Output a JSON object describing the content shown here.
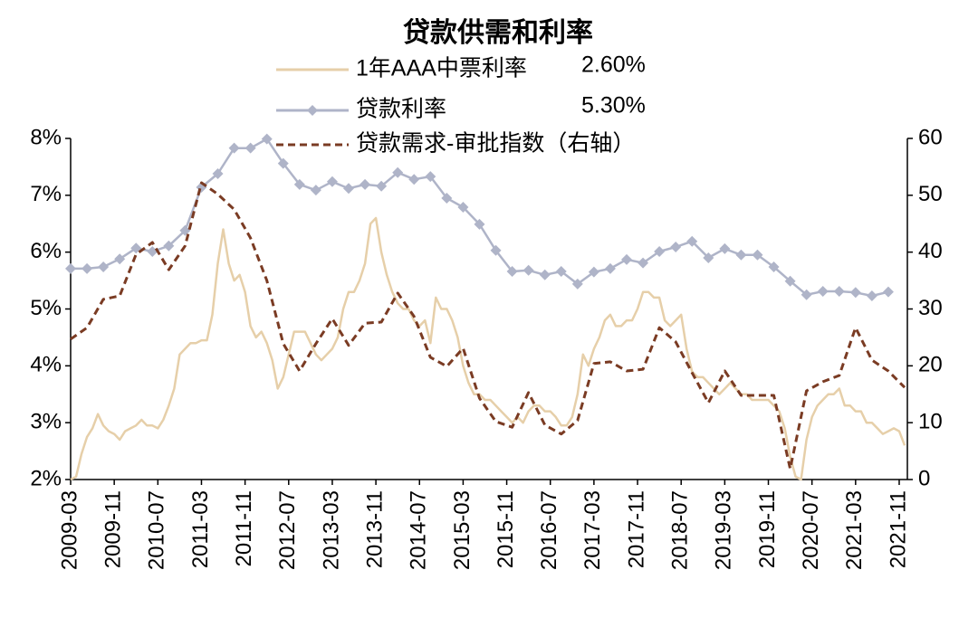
{
  "chart_data": {
    "type": "line",
    "title": "贷款供需和利率",
    "xlim": [
      "2009-03",
      "2021-12"
    ],
    "xticks": [
      "2009-03",
      "2009-11",
      "2010-07",
      "2011-03",
      "2011-11",
      "2012-07",
      "2013-03",
      "2013-11",
      "2014-07",
      "2015-03",
      "2015-11",
      "2016-07",
      "2017-03",
      "2017-11",
      "2018-07",
      "2019-03",
      "2019-11",
      "2020-07",
      "2021-03",
      "2021-11"
    ],
    "ylim": [
      2,
      8
    ],
    "yticks": [
      {
        "value": 2,
        "label": "2%"
      },
      {
        "value": 3,
        "label": "3%"
      },
      {
        "value": 4,
        "label": "4%"
      },
      {
        "value": 5,
        "label": "5%"
      },
      {
        "value": 6,
        "label": "6%"
      },
      {
        "value": 7,
        "label": "7%"
      },
      {
        "value": 8,
        "label": "8%"
      }
    ],
    "y2lim": [
      0,
      60
    ],
    "y2ticks": [
      0,
      10,
      20,
      30,
      40,
      50,
      60
    ],
    "grid": false,
    "series": [
      {
        "name": "1年AAA中票利率",
        "note": "2.60%",
        "color": "#e6cfa9",
        "axis": "y",
        "x": [
          "2009-03",
          "2009-04",
          "2009-05",
          "2009-06",
          "2009-07",
          "2009-08",
          "2009-09",
          "2009-10",
          "2009-11",
          "2009-12",
          "2010-01",
          "2010-02",
          "2010-03",
          "2010-04",
          "2010-05",
          "2010-06",
          "2010-07",
          "2010-08",
          "2010-09",
          "2010-10",
          "2010-11",
          "2010-12",
          "2011-01",
          "2011-02",
          "2011-03",
          "2011-04",
          "2011-05",
          "2011-06",
          "2011-07",
          "2011-08",
          "2011-09",
          "2011-10",
          "2011-11",
          "2011-12",
          "2012-01",
          "2012-02",
          "2012-03",
          "2012-04",
          "2012-05",
          "2012-06",
          "2012-07",
          "2012-08",
          "2012-09",
          "2012-10",
          "2012-11",
          "2012-12",
          "2013-01",
          "2013-02",
          "2013-03",
          "2013-04",
          "2013-05",
          "2013-06",
          "2013-07",
          "2013-08",
          "2013-09",
          "2013-10",
          "2013-11",
          "2013-12",
          "2014-01",
          "2014-02",
          "2014-03",
          "2014-04",
          "2014-05",
          "2014-06",
          "2014-07",
          "2014-08",
          "2014-09",
          "2014-10",
          "2014-11",
          "2014-12",
          "2015-01",
          "2015-02",
          "2015-03",
          "2015-04",
          "2015-05",
          "2015-06",
          "2015-07",
          "2015-08",
          "2015-09",
          "2015-10",
          "2015-11",
          "2015-12",
          "2016-01",
          "2016-02",
          "2016-03",
          "2016-04",
          "2016-05",
          "2016-06",
          "2016-07",
          "2016-08",
          "2016-09",
          "2016-10",
          "2016-11",
          "2016-12",
          "2017-01",
          "2017-02",
          "2017-03",
          "2017-04",
          "2017-05",
          "2017-06",
          "2017-07",
          "2017-08",
          "2017-09",
          "2017-10",
          "2017-11",
          "2017-12",
          "2018-01",
          "2018-02",
          "2018-03",
          "2018-04",
          "2018-05",
          "2018-06",
          "2018-07",
          "2018-08",
          "2018-09",
          "2018-10",
          "2018-11",
          "2018-12",
          "2019-01",
          "2019-02",
          "2019-03",
          "2019-04",
          "2019-05",
          "2019-06",
          "2019-07",
          "2019-08",
          "2019-09",
          "2019-10",
          "2019-11",
          "2019-12",
          "2020-01",
          "2020-02",
          "2020-03",
          "2020-04",
          "2020-05",
          "2020-06",
          "2020-07",
          "2020-08",
          "2020-09",
          "2020-10",
          "2020-11",
          "2020-12",
          "2021-01",
          "2021-02",
          "2021-03",
          "2021-04",
          "2021-05",
          "2021-06",
          "2021-07",
          "2021-08",
          "2021-09",
          "2021-10",
          "2021-11",
          "2021-12"
        ],
        "values": [
          2.0,
          2.05,
          2.45,
          2.75,
          2.9,
          3.15,
          2.95,
          2.85,
          2.8,
          2.7,
          2.85,
          2.9,
          2.95,
          3.05,
          2.95,
          2.95,
          2.9,
          3.05,
          3.3,
          3.6,
          4.2,
          4.3,
          4.4,
          4.4,
          4.45,
          4.45,
          4.9,
          5.8,
          6.4,
          5.8,
          5.5,
          5.6,
          5.3,
          4.7,
          4.5,
          4.6,
          4.4,
          4.1,
          3.6,
          3.8,
          4.2,
          4.6,
          4.6,
          4.6,
          4.4,
          4.2,
          4.1,
          4.2,
          4.3,
          4.5,
          5.0,
          5.3,
          5.3,
          5.5,
          5.8,
          6.5,
          6.6,
          6.0,
          5.6,
          5.3,
          5.1,
          5.0,
          5.0,
          4.8,
          4.7,
          4.8,
          4.4,
          5.2,
          5.0,
          5.0,
          4.8,
          4.5,
          4.0,
          3.7,
          3.5,
          3.5,
          3.4,
          3.4,
          3.3,
          3.2,
          3.1,
          3.0,
          3.1,
          3.0,
          3.2,
          3.3,
          3.3,
          3.2,
          3.2,
          3.1,
          2.95,
          2.95,
          3.1,
          3.5,
          4.2,
          4.0,
          4.3,
          4.5,
          4.8,
          4.9,
          4.7,
          4.7,
          4.8,
          4.8,
          5.0,
          5.3,
          5.3,
          5.2,
          5.2,
          4.8,
          4.7,
          4.8,
          4.9,
          4.3,
          3.9,
          3.8,
          3.8,
          3.7,
          3.6,
          3.5,
          3.6,
          3.7,
          3.6,
          3.5,
          3.5,
          3.4,
          3.4,
          3.4,
          3.4,
          3.3,
          3.2,
          2.9,
          2.4,
          2.05,
          2.0,
          2.7,
          3.1,
          3.3,
          3.4,
          3.5,
          3.5,
          3.6,
          3.3,
          3.3,
          3.2,
          3.2,
          3.0,
          3.0,
          2.9,
          2.8,
          2.85,
          2.9,
          2.85,
          2.6
        ]
      },
      {
        "name": "贷款利率",
        "note": "5.30%",
        "color": "#afb4c8",
        "axis": "y",
        "marker": "diamond",
        "x": [
          "2009-03",
          "2009-06",
          "2009-09",
          "2009-12",
          "2010-03",
          "2010-06",
          "2010-09",
          "2010-12",
          "2011-03",
          "2011-06",
          "2011-09",
          "2011-12",
          "2012-03",
          "2012-06",
          "2012-09",
          "2012-12",
          "2013-03",
          "2013-06",
          "2013-09",
          "2013-12",
          "2014-03",
          "2014-06",
          "2014-09",
          "2014-12",
          "2015-03",
          "2015-06",
          "2015-09",
          "2015-12",
          "2016-03",
          "2016-06",
          "2016-09",
          "2016-12",
          "2017-03",
          "2017-06",
          "2017-09",
          "2017-12",
          "2018-03",
          "2018-06",
          "2018-09",
          "2018-12",
          "2019-03",
          "2019-06",
          "2019-09",
          "2019-12",
          "2020-03",
          "2020-06",
          "2020-09",
          "2020-12",
          "2021-03",
          "2021-06",
          "2021-09"
        ],
        "values": [
          5.71,
          5.71,
          5.74,
          5.88,
          6.07,
          6.01,
          6.11,
          6.38,
          7.14,
          7.38,
          7.83,
          7.83,
          7.99,
          7.56,
          7.19,
          7.09,
          7.24,
          7.12,
          7.19,
          7.16,
          7.4,
          7.28,
          7.33,
          6.95,
          6.79,
          6.49,
          6.03,
          5.66,
          5.68,
          5.6,
          5.66,
          5.44,
          5.65,
          5.71,
          5.87,
          5.81,
          6.01,
          6.09,
          6.19,
          5.9,
          6.06,
          5.95,
          5.95,
          5.74,
          5.49,
          5.25,
          5.31,
          5.31,
          5.29,
          5.23,
          5.3
        ]
      },
      {
        "name": "贷款需求-审批指数（右轴）",
        "color": "#7a3b23",
        "axis": "y2",
        "dash": true,
        "x": [
          "2009-03",
          "2009-06",
          "2009-09",
          "2009-12",
          "2010-03",
          "2010-06",
          "2010-09",
          "2010-12",
          "2011-03",
          "2011-06",
          "2011-09",
          "2011-12",
          "2012-03",
          "2012-06",
          "2012-09",
          "2012-12",
          "2013-03",
          "2013-06",
          "2013-09",
          "2013-12",
          "2014-03",
          "2014-06",
          "2014-09",
          "2014-12",
          "2015-03",
          "2015-06",
          "2015-09",
          "2015-12",
          "2016-03",
          "2016-06",
          "2016-09",
          "2016-12",
          "2017-03",
          "2017-06",
          "2017-09",
          "2017-12",
          "2018-03",
          "2018-06",
          "2018-09",
          "2018-12",
          "2019-03",
          "2019-06",
          "2019-09",
          "2019-12",
          "2020-03",
          "2020-06",
          "2020-09",
          "2020-12",
          "2021-03",
          "2021-06",
          "2021-09",
          "2021-12"
        ],
        "values": [
          24.7,
          26.7,
          31.7,
          32.3,
          39.6,
          41.7,
          36.9,
          41.1,
          52.2,
          50.2,
          47.5,
          42.5,
          35.0,
          23.9,
          19.1,
          23.9,
          28.3,
          23.6,
          27.5,
          27.7,
          32.8,
          28.7,
          21.5,
          19.9,
          23.1,
          14.3,
          10.2,
          9.2,
          15.3,
          9.6,
          8.0,
          10.4,
          20.4,
          20.7,
          19.1,
          19.4,
          26.7,
          24.2,
          18.8,
          13.5,
          19.1,
          14.8,
          14.8,
          14.8,
          1.9,
          15.6,
          17.2,
          18.3,
          26.7,
          21.0,
          19.1,
          16.2
        ]
      }
    ]
  }
}
